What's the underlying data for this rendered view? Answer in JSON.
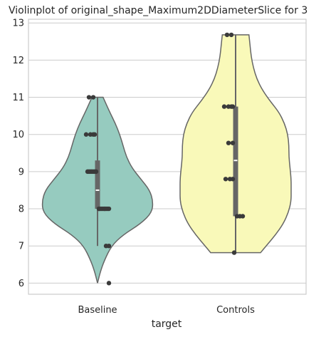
{
  "chart_data": {
    "type": "violin",
    "title": "Violinplot of original_shape_Maximum2DDiameterSlice for 3",
    "xlabel": "target",
    "ylabel": "",
    "ylim": [
      5.7,
      13.1
    ],
    "yticks": [
      6,
      7,
      8,
      9,
      10,
      11,
      12,
      13
    ],
    "grid": true,
    "categories": [
      "Baseline",
      "Controls"
    ],
    "colors": {
      "Baseline": "#96cbbf",
      "Controls": "#f9f9b9",
      "outline": "#666666",
      "box": "#666666",
      "median": "#ffffff",
      "point": "#3a3a3a",
      "grid": "#cccccc",
      "frame": "#cccccc"
    },
    "series": [
      {
        "name": "Baseline",
        "median": 8.5,
        "q1": 8.0,
        "q3": 9.3,
        "whisker_low": 7.0,
        "whisker_high": 11.0,
        "density_y": [
          6.0,
          6.3,
          6.6,
          7.0,
          7.3,
          7.6,
          7.9,
          8.2,
          8.5,
          8.8,
          9.1,
          9.4,
          9.7,
          10.0,
          10.3,
          10.6,
          11.0
        ],
        "density_w": [
          0.0,
          0.05,
          0.12,
          0.25,
          0.46,
          0.78,
          0.98,
          1.0,
          0.94,
          0.78,
          0.62,
          0.52,
          0.46,
          0.4,
          0.32,
          0.22,
          0.1
        ],
        "points": [
          11.0,
          11.0,
          10.0,
          10.0,
          10.0,
          10.0,
          9.0,
          9.0,
          9.0,
          9.0,
          9.0,
          9.0,
          9.0,
          8.0,
          8.0,
          8.0,
          8.0,
          8.0,
          8.0,
          8.0,
          8.0,
          8.0,
          8.0,
          7.0,
          7.0,
          6.0
        ]
      },
      {
        "name": "Controls",
        "median": 9.3,
        "q1": 7.8,
        "q3": 10.75,
        "whisker_low": 6.82,
        "whisker_high": 12.68,
        "density_y": [
          6.82,
          7.0,
          7.3,
          7.6,
          7.9,
          8.2,
          8.5,
          8.8,
          9.1,
          9.4,
          9.7,
          10.0,
          10.3,
          10.6,
          10.9,
          11.2,
          11.5,
          11.8,
          12.1,
          12.4,
          12.68
        ],
        "density_w": [
          0.45,
          0.55,
          0.72,
          0.86,
          0.95,
          1.0,
          1.0,
          1.0,
          0.98,
          0.96,
          0.96,
          0.94,
          0.88,
          0.78,
          0.62,
          0.48,
          0.38,
          0.32,
          0.28,
          0.26,
          0.24
        ],
        "points": [
          12.68,
          12.68,
          10.75,
          10.75,
          10.75,
          10.75,
          9.77,
          9.77,
          8.8,
          8.8,
          8.8,
          7.8,
          7.8,
          7.8,
          6.82
        ]
      }
    ]
  }
}
